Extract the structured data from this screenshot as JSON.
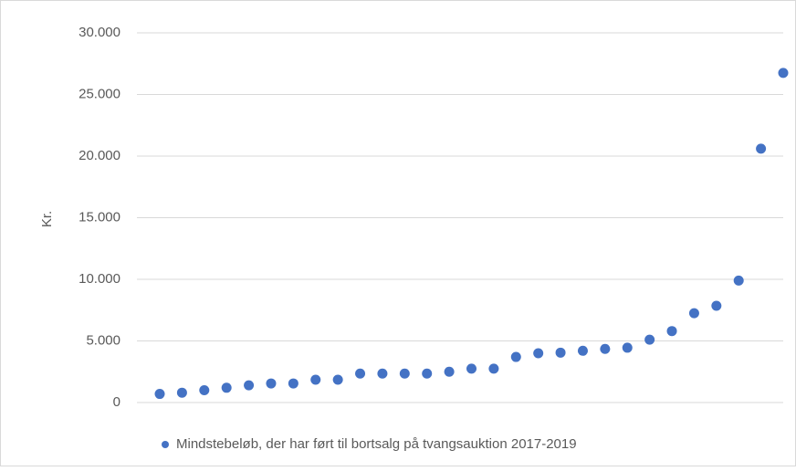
{
  "chart_data": {
    "type": "scatter",
    "y_axis_label": "Kr.",
    "categories": [
      null,
      null,
      null,
      null,
      null,
      null,
      null,
      null,
      null,
      null,
      null,
      null,
      null,
      null,
      null,
      null,
      null,
      null,
      null,
      null,
      null,
      null,
      null,
      null,
      null,
      null,
      null,
      null,
      null
    ],
    "series": [
      {
        "name": "Mindstebeløb, der har ført til bortsalg på tvangsauktion 2017-2019",
        "color": "#4472c4",
        "values": [
          700,
          800,
          1000,
          1200,
          1400,
          1550,
          1550,
          1850,
          1850,
          2350,
          2350,
          2350,
          2350,
          2500,
          2750,
          2750,
          3700,
          4000,
          4050,
          4200,
          4350,
          4450,
          5100,
          5800,
          7250,
          7850,
          9900,
          20600,
          26750
        ]
      }
    ],
    "ylim": [
      0,
      30000
    ],
    "yticks": [
      0,
      {
        "value": 5000,
        "label": "5.000"
      },
      {
        "value": 10000,
        "label": "10.000"
      },
      {
        "value": 15000,
        "label": "15.000"
      },
      {
        "value": 20000,
        "label": "20.000"
      },
      {
        "value": 25000,
        "label": "25.000"
      },
      {
        "value": 30000,
        "label": "30.000"
      }
    ],
    "grid": true,
    "legend": "bottom"
  }
}
